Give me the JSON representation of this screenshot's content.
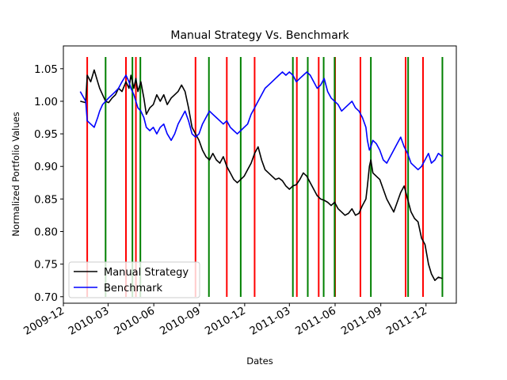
{
  "chart_data": {
    "type": "line",
    "title": "Manual Strategy Vs. Benchmark",
    "xlabel": "Dates",
    "ylabel": "Normalized Portfolio Values",
    "xlim": [
      "2009-12-01",
      "2012-01-31"
    ],
    "ylim": [
      0.69,
      1.085
    ],
    "x_ticks": [
      "2009-12",
      "2010-03",
      "2010-06",
      "2010-09",
      "2010-12",
      "2011-03",
      "2011-06",
      "2011-09",
      "2011-12"
    ],
    "y_ticks": [
      0.7,
      0.75,
      0.8,
      0.85,
      0.9,
      0.95,
      1.0,
      1.05
    ],
    "legend": {
      "placement": "lower-left"
    },
    "series": [
      {
        "name": "Manual Strategy",
        "color": "#000000",
        "points": [
          [
            "2010-01-04",
            1.0
          ],
          [
            "2010-01-15",
            0.998
          ],
          [
            "2010-01-18",
            1.04
          ],
          [
            "2010-01-25",
            1.03
          ],
          [
            "2010-02-01",
            1.048
          ],
          [
            "2010-02-08",
            1.03
          ],
          [
            "2010-02-12",
            1.02
          ],
          [
            "2010-02-18",
            1.01
          ],
          [
            "2010-02-24",
            1.0
          ],
          [
            "2010-03-02",
            0.998
          ],
          [
            "2010-03-09",
            1.005
          ],
          [
            "2010-03-16",
            1.01
          ],
          [
            "2010-03-22",
            1.02
          ],
          [
            "2010-03-29",
            1.015
          ],
          [
            "2010-04-06",
            1.03
          ],
          [
            "2010-04-12",
            1.02
          ],
          [
            "2010-04-16",
            1.04
          ],
          [
            "2010-04-22",
            1.02
          ],
          [
            "2010-04-26",
            1.035
          ],
          [
            "2010-04-30",
            1.015
          ],
          [
            "2010-05-06",
            1.03
          ],
          [
            "2010-05-12",
            1.005
          ],
          [
            "2010-05-17",
            0.98
          ],
          [
            "2010-05-24",
            0.99
          ],
          [
            "2010-05-31",
            0.995
          ],
          [
            "2010-06-07",
            1.01
          ],
          [
            "2010-06-14",
            1.0
          ],
          [
            "2010-06-21",
            1.01
          ],
          [
            "2010-06-28",
            0.995
          ],
          [
            "2010-07-06",
            1.005
          ],
          [
            "2010-07-13",
            1.01
          ],
          [
            "2010-07-20",
            1.015
          ],
          [
            "2010-07-27",
            1.025
          ],
          [
            "2010-08-03",
            1.015
          ],
          [
            "2010-08-10",
            0.99
          ],
          [
            "2010-08-17",
            0.96
          ],
          [
            "2010-08-24",
            0.95
          ],
          [
            "2010-08-31",
            0.94
          ],
          [
            "2010-09-07",
            0.925
          ],
          [
            "2010-09-14",
            0.915
          ],
          [
            "2010-09-21",
            0.91
          ],
          [
            "2010-09-28",
            0.92
          ],
          [
            "2010-10-05",
            0.91
          ],
          [
            "2010-10-12",
            0.905
          ],
          [
            "2010-10-19",
            0.915
          ],
          [
            "2010-10-26",
            0.9
          ],
          [
            "2010-11-02",
            0.89
          ],
          [
            "2010-11-09",
            0.88
          ],
          [
            "2010-11-16",
            0.875
          ],
          [
            "2010-11-23",
            0.88
          ],
          [
            "2010-11-30",
            0.885
          ],
          [
            "2010-12-07",
            0.895
          ],
          [
            "2010-12-14",
            0.905
          ],
          [
            "2010-12-21",
            0.92
          ],
          [
            "2010-12-28",
            0.93
          ],
          [
            "2011-01-04",
            0.91
          ],
          [
            "2011-01-11",
            0.895
          ],
          [
            "2011-01-18",
            0.89
          ],
          [
            "2011-01-25",
            0.885
          ],
          [
            "2011-02-01",
            0.88
          ],
          [
            "2011-02-08",
            0.882
          ],
          [
            "2011-02-15",
            0.878
          ],
          [
            "2011-02-22",
            0.87
          ],
          [
            "2011-03-01",
            0.865
          ],
          [
            "2011-03-08",
            0.87
          ],
          [
            "2011-03-15",
            0.872
          ],
          [
            "2011-03-22",
            0.88
          ],
          [
            "2011-03-29",
            0.89
          ],
          [
            "2011-04-05",
            0.885
          ],
          [
            "2011-04-12",
            0.875
          ],
          [
            "2011-04-19",
            0.865
          ],
          [
            "2011-04-26",
            0.855
          ],
          [
            "2011-05-03",
            0.85
          ],
          [
            "2011-05-10",
            0.848
          ],
          [
            "2011-05-17",
            0.845
          ],
          [
            "2011-05-24",
            0.84
          ],
          [
            "2011-05-31",
            0.845
          ],
          [
            "2011-06-07",
            0.835
          ],
          [
            "2011-06-14",
            0.83
          ],
          [
            "2011-06-21",
            0.825
          ],
          [
            "2011-06-28",
            0.828
          ],
          [
            "2011-07-05",
            0.835
          ],
          [
            "2011-07-12",
            0.825
          ],
          [
            "2011-07-19",
            0.828
          ],
          [
            "2011-07-26",
            0.84
          ],
          [
            "2011-08-02",
            0.85
          ],
          [
            "2011-08-05",
            0.87
          ],
          [
            "2011-08-09",
            0.9
          ],
          [
            "2011-08-12",
            0.91
          ],
          [
            "2011-08-16",
            0.89
          ],
          [
            "2011-08-23",
            0.885
          ],
          [
            "2011-08-30",
            0.88
          ],
          [
            "2011-09-06",
            0.865
          ],
          [
            "2011-09-13",
            0.85
          ],
          [
            "2011-09-20",
            0.84
          ],
          [
            "2011-09-27",
            0.83
          ],
          [
            "2011-10-04",
            0.845
          ],
          [
            "2011-10-11",
            0.86
          ],
          [
            "2011-10-18",
            0.87
          ],
          [
            "2011-10-25",
            0.85
          ],
          [
            "2011-11-01",
            0.83
          ],
          [
            "2011-11-08",
            0.82
          ],
          [
            "2011-11-15",
            0.815
          ],
          [
            "2011-11-22",
            0.79
          ],
          [
            "2011-11-29",
            0.78
          ],
          [
            "2011-12-06",
            0.75
          ],
          [
            "2011-12-12",
            0.735
          ],
          [
            "2011-12-19",
            0.725
          ],
          [
            "2011-12-26",
            0.73
          ],
          [
            "2012-01-03",
            0.728
          ]
        ]
      },
      {
        "name": "Benchmark",
        "color": "#0000ff",
        "points": [
          [
            "2010-01-04",
            1.015
          ],
          [
            "2010-01-15",
            1.0
          ],
          [
            "2010-01-18",
            0.97
          ],
          [
            "2010-01-25",
            0.965
          ],
          [
            "2010-02-01",
            0.96
          ],
          [
            "2010-02-08",
            0.975
          ],
          [
            "2010-02-12",
            0.985
          ],
          [
            "2010-02-18",
            0.995
          ],
          [
            "2010-02-24",
            1.0
          ],
          [
            "2010-03-02",
            1.005
          ],
          [
            "2010-03-09",
            1.01
          ],
          [
            "2010-03-16",
            1.015
          ],
          [
            "2010-03-22",
            1.02
          ],
          [
            "2010-03-29",
            1.03
          ],
          [
            "2010-04-06",
            1.04
          ],
          [
            "2010-04-12",
            1.03
          ],
          [
            "2010-04-16",
            1.02
          ],
          [
            "2010-04-22",
            1.01
          ],
          [
            "2010-04-26",
            1.0
          ],
          [
            "2010-04-30",
            0.99
          ],
          [
            "2010-05-06",
            0.985
          ],
          [
            "2010-05-12",
            0.975
          ],
          [
            "2010-05-17",
            0.96
          ],
          [
            "2010-05-24",
            0.955
          ],
          [
            "2010-05-31",
            0.96
          ],
          [
            "2010-06-07",
            0.95
          ],
          [
            "2010-06-14",
            0.96
          ],
          [
            "2010-06-21",
            0.965
          ],
          [
            "2010-06-28",
            0.95
          ],
          [
            "2010-07-06",
            0.94
          ],
          [
            "2010-07-13",
            0.95
          ],
          [
            "2010-07-20",
            0.965
          ],
          [
            "2010-07-27",
            0.975
          ],
          [
            "2010-08-03",
            0.985
          ],
          [
            "2010-08-10",
            0.97
          ],
          [
            "2010-08-17",
            0.95
          ],
          [
            "2010-08-24",
            0.945
          ],
          [
            "2010-08-31",
            0.95
          ],
          [
            "2010-09-07",
            0.965
          ],
          [
            "2010-09-14",
            0.975
          ],
          [
            "2010-09-21",
            0.985
          ],
          [
            "2010-09-28",
            0.98
          ],
          [
            "2010-10-05",
            0.975
          ],
          [
            "2010-10-12",
            0.97
          ],
          [
            "2010-10-19",
            0.965
          ],
          [
            "2010-10-26",
            0.97
          ],
          [
            "2010-11-02",
            0.96
          ],
          [
            "2010-11-09",
            0.955
          ],
          [
            "2010-11-16",
            0.95
          ],
          [
            "2010-11-23",
            0.955
          ],
          [
            "2010-11-30",
            0.96
          ],
          [
            "2010-12-07",
            0.965
          ],
          [
            "2010-12-14",
            0.98
          ],
          [
            "2010-12-21",
            0.99
          ],
          [
            "2010-12-28",
            1.0
          ],
          [
            "2011-01-04",
            1.01
          ],
          [
            "2011-01-11",
            1.02
          ],
          [
            "2011-01-18",
            1.025
          ],
          [
            "2011-01-25",
            1.03
          ],
          [
            "2011-02-01",
            1.035
          ],
          [
            "2011-02-08",
            1.04
          ],
          [
            "2011-02-15",
            1.045
          ],
          [
            "2011-02-22",
            1.04
          ],
          [
            "2011-03-01",
            1.045
          ],
          [
            "2011-03-08",
            1.04
          ],
          [
            "2011-03-15",
            1.03
          ],
          [
            "2011-03-22",
            1.035
          ],
          [
            "2011-03-29",
            1.04
          ],
          [
            "2011-04-05",
            1.045
          ],
          [
            "2011-04-12",
            1.04
          ],
          [
            "2011-04-19",
            1.03
          ],
          [
            "2011-04-26",
            1.02
          ],
          [
            "2011-05-03",
            1.025
          ],
          [
            "2011-05-10",
            1.035
          ],
          [
            "2011-05-17",
            1.015
          ],
          [
            "2011-05-24",
            1.005
          ],
          [
            "2011-05-31",
            1.0
          ],
          [
            "2011-06-07",
            0.995
          ],
          [
            "2011-06-14",
            0.985
          ],
          [
            "2011-06-21",
            0.99
          ],
          [
            "2011-06-28",
            0.995
          ],
          [
            "2011-07-05",
            1.0
          ],
          [
            "2011-07-12",
            0.99
          ],
          [
            "2011-07-19",
            0.985
          ],
          [
            "2011-07-26",
            0.975
          ],
          [
            "2011-08-02",
            0.96
          ],
          [
            "2011-08-05",
            0.94
          ],
          [
            "2011-08-09",
            0.925
          ],
          [
            "2011-08-12",
            0.93
          ],
          [
            "2011-08-16",
            0.94
          ],
          [
            "2011-08-23",
            0.935
          ],
          [
            "2011-08-30",
            0.925
          ],
          [
            "2011-09-06",
            0.91
          ],
          [
            "2011-09-13",
            0.905
          ],
          [
            "2011-09-20",
            0.915
          ],
          [
            "2011-09-27",
            0.925
          ],
          [
            "2011-10-04",
            0.935
          ],
          [
            "2011-10-11",
            0.945
          ],
          [
            "2011-10-18",
            0.93
          ],
          [
            "2011-10-25",
            0.92
          ],
          [
            "2011-11-01",
            0.905
          ],
          [
            "2011-11-08",
            0.9
          ],
          [
            "2011-11-15",
            0.895
          ],
          [
            "2011-11-22",
            0.9
          ],
          [
            "2011-11-29",
            0.91
          ],
          [
            "2011-12-06",
            0.92
          ],
          [
            "2011-12-12",
            0.905
          ],
          [
            "2011-12-19",
            0.91
          ],
          [
            "2011-12-26",
            0.92
          ],
          [
            "2012-01-03",
            0.915
          ]
        ]
      }
    ],
    "signals": {
      "red": [
        "2010-01-18",
        "2010-04-06",
        "2010-04-26",
        "2010-08-24",
        "2010-10-26",
        "2010-12-21",
        "2011-03-16",
        "2011-04-29",
        "2011-06-01",
        "2011-07-22",
        "2011-10-21",
        "2011-11-25"
      ],
      "green": [
        "2010-02-24",
        "2010-04-19",
        "2010-05-05",
        "2010-09-20",
        "2010-11-23",
        "2011-03-08",
        "2011-04-07",
        "2011-05-09",
        "2011-05-31",
        "2011-08-12",
        "2011-10-26",
        "2012-01-03"
      ],
      "colors": {
        "red": "#ff0000",
        "green": "#008000"
      }
    }
  }
}
